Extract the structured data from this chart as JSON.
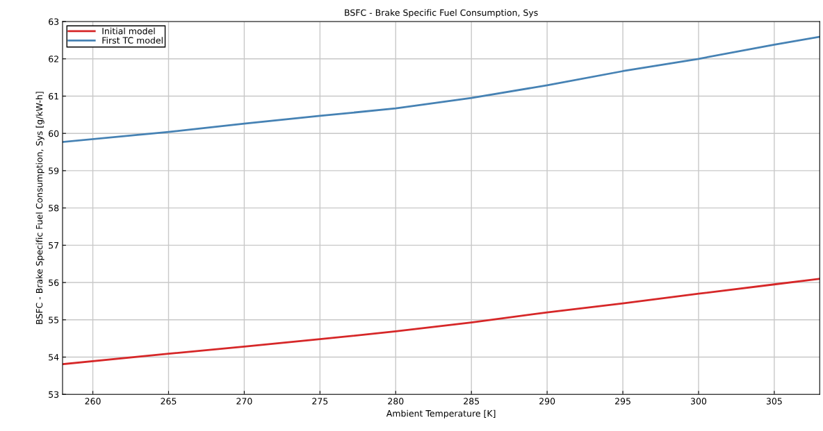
{
  "chart_data": {
    "type": "line",
    "title": "BSFC - Brake Specific Fuel Consumption, Sys",
    "xlabel": "Ambient Temperature [K]",
    "ylabel": "BSFC - Brake Specific Fuel Consumption, Sys [g/kW-h]",
    "x": [
      258,
      265,
      270,
      275,
      280,
      285,
      290,
      295,
      300,
      305,
      308
    ],
    "series": [
      {
        "name": "Initial model",
        "color": "#d62728",
        "values": [
          53.81,
          54.09,
          54.28,
          54.48,
          54.69,
          54.93,
          55.2,
          55.44,
          55.7,
          55.95,
          56.1
        ]
      },
      {
        "name": "First TC model",
        "color": "#4682b4",
        "values": [
          59.77,
          60.04,
          60.26,
          60.47,
          60.67,
          60.95,
          61.29,
          61.67,
          62.0,
          62.38,
          62.59
        ]
      }
    ],
    "xlim": [
      258,
      308
    ],
    "xticks": [
      260,
      265,
      270,
      275,
      280,
      285,
      290,
      295,
      300,
      305
    ],
    "ylim": [
      53,
      63
    ],
    "yticks": [
      53,
      54,
      55,
      56,
      57,
      58,
      59,
      60,
      61,
      62,
      63
    ],
    "grid": true,
    "legend": "top left",
    "marker": "none",
    "line_style": "solid"
  }
}
